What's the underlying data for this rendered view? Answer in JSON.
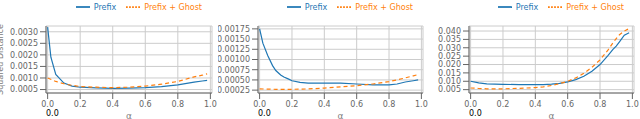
{
  "chart_data": [
    {
      "type": "line",
      "xlabel": "α",
      "ylabel": "Squared Distance",
      "xlim": [
        -0.01,
        1.01
      ],
      "xticks": [
        {
          "value": 0,
          "label": "0.0"
        },
        0.2,
        0.4,
        0.6,
        0.8,
        {
          "value": 1,
          "label": "1.0"
        }
      ],
      "ylim": [
        0.00035,
        0.00325
      ],
      "yticks": [
        0.0005,
        {
          "value": 0.001,
          "label": "0.0010"
        },
        0.0015,
        {
          "value": 0.002,
          "label": "0.0020"
        },
        0.0025,
        {
          "value": 0.003,
          "label": "0.0030"
        }
      ],
      "grid": true,
      "legend": "upper right",
      "annotations": [
        {
          "text": "0.0"
        }
      ],
      "series": [
        {
          "name": "Prefix",
          "color": "#1f77b4",
          "line_style": "solid",
          "x": [
            0.0,
            0.02,
            0.05,
            0.1,
            0.15,
            0.2,
            0.3,
            0.4,
            0.5,
            0.6,
            0.7,
            0.8,
            0.9,
            0.95,
            0.98
          ],
          "values": [
            0.0032,
            0.0019,
            0.00115,
            0.00078,
            0.00065,
            0.0006,
            0.00057,
            0.00055,
            0.00056,
            0.00058,
            0.00063,
            0.0007,
            0.00082,
            0.00087,
            0.0009
          ]
        },
        {
          "name": "Prefix + Ghost",
          "color": "#ff7f0e",
          "line_style": "dashed",
          "x": [
            0.0,
            0.05,
            0.1,
            0.15,
            0.2,
            0.3,
            0.4,
            0.5,
            0.6,
            0.7,
            0.8,
            0.9,
            0.95,
            0.98
          ],
          "values": [
            0.001,
            0.00085,
            0.00075,
            0.00068,
            0.00063,
            0.0006,
            0.00058,
            0.0006,
            0.00065,
            0.00073,
            0.00085,
            0.00105,
            0.00112,
            0.00118
          ]
        }
      ]
    },
    {
      "type": "line",
      "xlabel": "α",
      "xlim": [
        -0.01,
        1.01
      ],
      "xticks": [
        {
          "value": 0,
          "label": "0.0"
        },
        0.2,
        0.4,
        0.6,
        0.8,
        {
          "value": 1,
          "label": "1.0"
        }
      ],
      "ylim": [
        0.00018,
        0.00182
      ],
      "yticks": [
        0.00025,
        {
          "value": 0.0005,
          "label": "0.00050"
        },
        0.00075,
        {
          "value": 0.001,
          "label": "0.00100"
        },
        0.00125,
        {
          "value": 0.0015,
          "label": "0.00150"
        },
        0.00175
      ],
      "grid": true,
      "legend": "upper right",
      "annotations": [
        {
          "text": "0.0"
        }
      ],
      "series": [
        {
          "name": "Prefix",
          "color": "#1f77b4",
          "line_style": "solid",
          "x": [
            0.0,
            0.02,
            0.05,
            0.08,
            0.1,
            0.13,
            0.15,
            0.18,
            0.2,
            0.25,
            0.3,
            0.4,
            0.5,
            0.6,
            0.7,
            0.8,
            0.85,
            0.9,
            0.95,
            0.98
          ],
          "values": [
            0.00175,
            0.0014,
            0.0011,
            0.00085,
            0.00073,
            0.00062,
            0.00057,
            0.00052,
            0.00048,
            0.00044,
            0.00042,
            0.00042,
            0.00042,
            0.0004,
            0.00038,
            0.00038,
            0.0004,
            0.00045,
            0.00048,
            0.0005
          ]
        },
        {
          "name": "Prefix + Ghost",
          "color": "#ff7f0e",
          "line_style": "dashed",
          "x": [
            0.0,
            0.1,
            0.2,
            0.3,
            0.4,
            0.5,
            0.6,
            0.7,
            0.8,
            0.85,
            0.9,
            0.95,
            0.98
          ],
          "values": [
            0.00028,
            0.00027,
            0.00027,
            0.00028,
            0.0003,
            0.00033,
            0.00036,
            0.0004,
            0.00046,
            0.0005,
            0.00055,
            0.0006,
            0.00063
          ]
        }
      ]
    },
    {
      "type": "line",
      "xlabel": "α",
      "xlim": [
        -0.01,
        1.01
      ],
      "xticks": [
        {
          "value": 0,
          "label": "0.0"
        },
        0.2,
        0.4,
        0.6,
        0.8,
        {
          "value": 1,
          "label": "1.0"
        }
      ],
      "ylim": [
        0.003,
        0.043
      ],
      "yticks": [
        0.005,
        {
          "value": 0.01,
          "label": "0.010"
        },
        0.015,
        {
          "value": 0.02,
          "label": "0.020"
        },
        0.025,
        {
          "value": 0.03,
          "label": "0.030"
        },
        0.035,
        {
          "value": 0.04,
          "label": "0.040"
        }
      ],
      "grid": true,
      "legend": "upper right",
      "annotations": [
        {
          "text": "0.0"
        }
      ],
      "series": [
        {
          "name": "Prefix",
          "color": "#1f77b4",
          "line_style": "solid",
          "x": [
            0.0,
            0.05,
            0.1,
            0.2,
            0.3,
            0.4,
            0.45,
            0.5,
            0.55,
            0.6,
            0.65,
            0.7,
            0.75,
            0.8,
            0.85,
            0.88,
            0.9,
            0.92,
            0.95,
            0.98
          ],
          "values": [
            0.01,
            0.009,
            0.0085,
            0.0082,
            0.008,
            0.008,
            0.008,
            0.0083,
            0.0088,
            0.0096,
            0.011,
            0.013,
            0.016,
            0.02,
            0.0255,
            0.029,
            0.031,
            0.0335,
            0.0375,
            0.039
          ]
        },
        {
          "name": "Prefix + Ghost",
          "color": "#ff7f0e",
          "line_style": "dashed",
          "x": [
            0.0,
            0.05,
            0.1,
            0.2,
            0.3,
            0.4,
            0.45,
            0.5,
            0.55,
            0.6,
            0.65,
            0.7,
            0.75,
            0.8,
            0.85,
            0.88,
            0.9,
            0.92,
            0.95,
            0.98
          ],
          "values": [
            0.006,
            0.0057,
            0.0055,
            0.0055,
            0.0058,
            0.0062,
            0.0067,
            0.0075,
            0.0086,
            0.01,
            0.012,
            0.0148,
            0.0183,
            0.0228,
            0.0287,
            0.033,
            0.0355,
            0.0378,
            0.04,
            0.0415
          ]
        }
      ]
    }
  ]
}
